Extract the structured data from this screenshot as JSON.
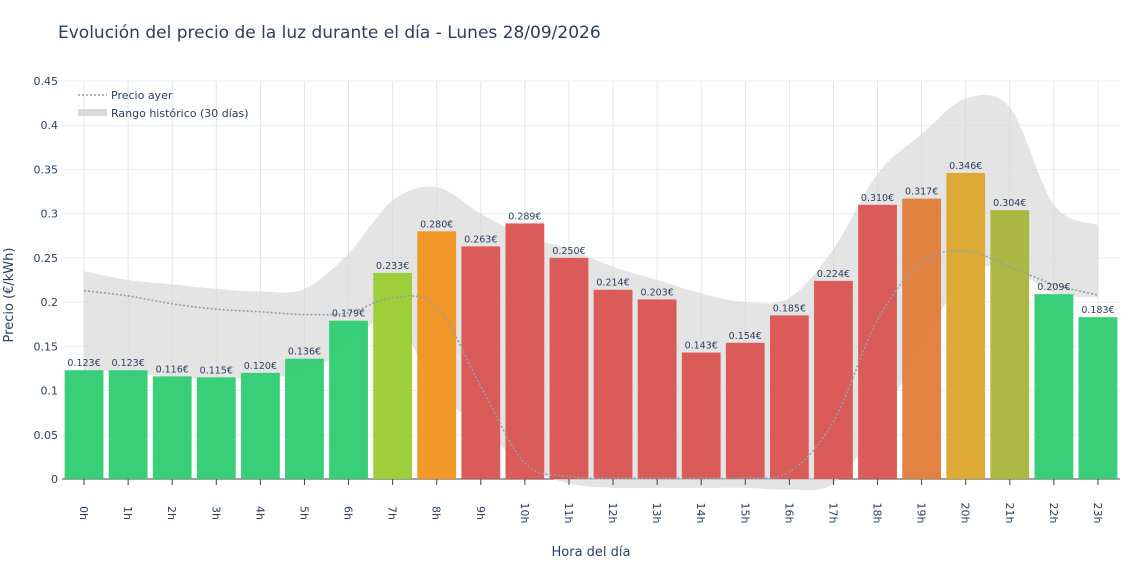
{
  "chart_data": {
    "type": "bar",
    "title": "Evolución del precio de la luz durante el día - Lunes 28/09/2026",
    "xlabel": "Hora del día",
    "ylabel": "Precio (€/kWh)",
    "ylim": [
      0,
      0.45
    ],
    "yticks": [
      "0",
      "0.05",
      "0.1",
      "0.15",
      "0.2",
      "0.25",
      "0.3",
      "0.35",
      "0.4",
      "0.45"
    ],
    "ytick_values": [
      0,
      0.05,
      0.1,
      0.15,
      0.2,
      0.25,
      0.3,
      0.35,
      0.4,
      0.45
    ],
    "grid": true,
    "legend_position": "top-left",
    "categories": [
      "0h",
      "1h",
      "2h",
      "3h",
      "4h",
      "5h",
      "6h",
      "7h",
      "8h",
      "9h",
      "10h",
      "11h",
      "12h",
      "13h",
      "14h",
      "15h",
      "16h",
      "17h",
      "18h",
      "19h",
      "20h",
      "21h",
      "22h",
      "23h"
    ],
    "values": [
      0.123,
      0.123,
      0.116,
      0.115,
      0.12,
      0.136,
      0.179,
      0.233,
      0.28,
      0.263,
      0.289,
      0.25,
      0.214,
      0.203,
      0.143,
      0.154,
      0.185,
      0.224,
      0.31,
      0.317,
      0.346,
      0.304,
      0.209,
      0.183
    ],
    "bar_labels": [
      "0.123€",
      "0.123€",
      "0.116€",
      "0.115€",
      "0.120€",
      "0.136€",
      "0.179€",
      "0.233€",
      "0.280€",
      "0.263€",
      "0.289€",
      "0.250€",
      "0.214€",
      "0.203€",
      "0.143€",
      "0.154€",
      "0.185€",
      "0.224€",
      "0.310€",
      "0.317€",
      "0.346€",
      "0.304€",
      "0.209€",
      "0.183€"
    ],
    "bar_colors": [
      "#2ecc71",
      "#2ecc71",
      "#2ecc71",
      "#2ecc71",
      "#2ecc71",
      "#2ecc71",
      "#2ecc71",
      "#9acd32",
      "#f0921e",
      "#d9534f",
      "#d9534f",
      "#d9534f",
      "#d9534f",
      "#d9534f",
      "#d9534f",
      "#d9534f",
      "#d9534f",
      "#d9534f",
      "#d9534f",
      "#e07b39",
      "#dca52b",
      "#a8b53a",
      "#2ecc71",
      "#2ecc71"
    ],
    "previous_day": {
      "name": "Precio ayer",
      "values": [
        0.213,
        0.207,
        0.198,
        0.192,
        0.189,
        0.186,
        0.188,
        0.205,
        0.195,
        0.105,
        0.018,
        0.003,
        0.001,
        0.001,
        0.001,
        0.001,
        0.008,
        0.065,
        0.18,
        0.245,
        0.258,
        0.24,
        0.22,
        0.208
      ]
    },
    "historical_range": {
      "name": "Rango histórico (30 días)",
      "upper": [
        0.235,
        0.225,
        0.22,
        0.215,
        0.212,
        0.215,
        0.255,
        0.315,
        0.33,
        0.3,
        0.275,
        0.26,
        0.24,
        0.225,
        0.21,
        0.2,
        0.205,
        0.26,
        0.345,
        0.39,
        0.43,
        0.42,
        0.31,
        0.287
      ],
      "lower": [
        0.122,
        0.121,
        0.115,
        0.113,
        0.115,
        0.12,
        0.15,
        0.185,
        0.1,
        0.06,
        0.015,
        -0.005,
        -0.01,
        -0.01,
        -0.01,
        -0.01,
        -0.012,
        -0.005,
        0.06,
        0.15,
        0.23,
        0.238,
        0.21,
        0.205
      ]
    },
    "colors": {
      "green": "#2ecc71",
      "red": "#d9534f",
      "range_fill": "#d9d9d9",
      "prev_line": "#8aa3a8"
    }
  }
}
